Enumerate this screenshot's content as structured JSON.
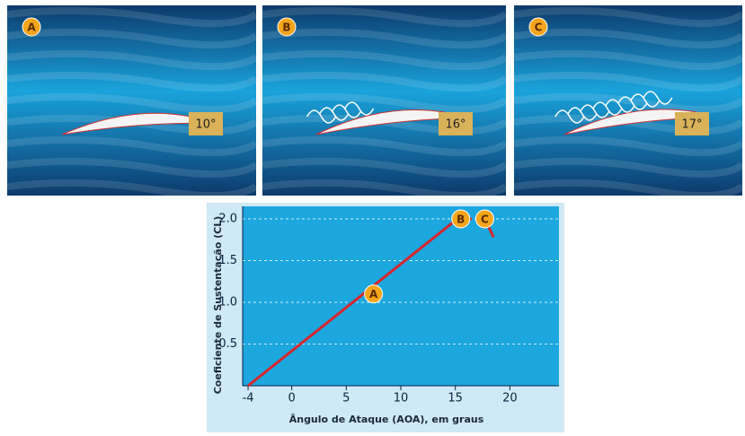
{
  "panels": [
    {
      "label": "A",
      "angle": "10°"
    },
    {
      "label": "B",
      "angle": "16°"
    },
    {
      "label": "C",
      "angle": "17°"
    }
  ],
  "chart_data": {
    "type": "line",
    "x_label": "Ângulo de Ataque (AOA), em graus",
    "y_label": "Coeficiente de Sustentação (CL)",
    "xlim": [
      -4.5,
      24.5
    ],
    "ylim": [
      0,
      2.15
    ],
    "xticks": [
      -4,
      0,
      5,
      10,
      15,
      20
    ],
    "yticks": [
      {
        "value": 0.5,
        "label": "0.5"
      },
      {
        "value": 1.0,
        "label": "1.0"
      },
      {
        "value": 1.5,
        "label": "1.5"
      },
      {
        "value": 2.0,
        "label": "2.0"
      }
    ],
    "grid": true,
    "series": [
      {
        "color": "#d8262c",
        "x": [
          -4,
          15,
          16.5,
          null,
          18,
          18.5
        ],
        "values": [
          0,
          1.98,
          2.0,
          null,
          1.92,
          1.78
        ]
      }
    ],
    "points": [
      {
        "label": "A",
        "x": 7.5,
        "y": 1.1
      },
      {
        "label": "B",
        "x": 15.5,
        "y": 2.0
      },
      {
        "label": "C",
        "x": 17.7,
        "y": 2.0
      }
    ]
  }
}
